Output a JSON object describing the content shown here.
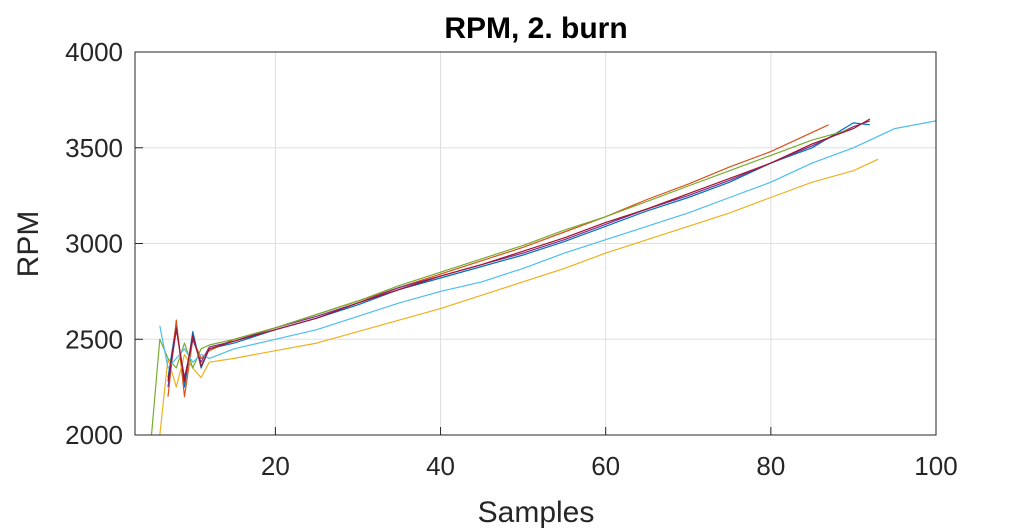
{
  "chart_data": {
    "type": "line",
    "title": "RPM, 2. burn",
    "xlabel": "Samples",
    "ylabel": "RPM",
    "xlim": [
      3,
      100
    ],
    "ylim": [
      2000,
      4000
    ],
    "xticks": [
      20,
      40,
      60,
      80,
      100
    ],
    "yticks": [
      2000,
      2500,
      3000,
      3500,
      4000
    ],
    "grid": true,
    "legend": "none",
    "series": [
      {
        "color": "#0072BD",
        "x": [
          7,
          8,
          9,
          10,
          11,
          12,
          15,
          20,
          25,
          30,
          35,
          40,
          45,
          50,
          55,
          60,
          65,
          70,
          75,
          80,
          85,
          90,
          92
        ],
        "y": [
          2300,
          2580,
          2250,
          2540,
          2350,
          2450,
          2480,
          2550,
          2610,
          2680,
          2760,
          2820,
          2880,
          2940,
          3010,
          3090,
          3170,
          3240,
          3320,
          3420,
          3500,
          3630,
          3620
        ]
      },
      {
        "color": "#D95319",
        "x": [
          7,
          8,
          9,
          10,
          11,
          12,
          15,
          20,
          25,
          30,
          35,
          40,
          45,
          50,
          55,
          60,
          65,
          70,
          75,
          80,
          85,
          87
        ],
        "y": [
          2200,
          2600,
          2200,
          2500,
          2400,
          2440,
          2500,
          2560,
          2630,
          2700,
          2770,
          2840,
          2910,
          2980,
          3060,
          3140,
          3230,
          3310,
          3400,
          3480,
          3580,
          3620
        ]
      },
      {
        "color": "#EDB120",
        "x": [
          6,
          7,
          8,
          9,
          10,
          11,
          12,
          15,
          20,
          25,
          30,
          35,
          40,
          45,
          50,
          55,
          60,
          65,
          70,
          75,
          80,
          85,
          90,
          93
        ],
        "y": [
          2000,
          2400,
          2250,
          2420,
          2350,
          2300,
          2380,
          2400,
          2440,
          2480,
          2540,
          2600,
          2660,
          2730,
          2800,
          2870,
          2950,
          3020,
          3090,
          3160,
          3240,
          3320,
          3380,
          3440
        ]
      },
      {
        "color": "#7E2F8E",
        "x": [
          7,
          8,
          9,
          10,
          11,
          12,
          15,
          20,
          25,
          30,
          35,
          40,
          45,
          50,
          55,
          60,
          65,
          70,
          75,
          80,
          85,
          90,
          92
        ],
        "y": [
          2250,
          2550,
          2300,
          2500,
          2380,
          2460,
          2490,
          2560,
          2620,
          2690,
          2770,
          2830,
          2890,
          2950,
          3020,
          3100,
          3180,
          3250,
          3330,
          3420,
          3510,
          3610,
          3640
        ]
      },
      {
        "color": "#77AC30",
        "x": [
          5,
          6,
          7,
          8,
          9,
          10,
          11,
          12,
          15,
          20,
          25,
          30,
          35,
          40,
          45,
          50,
          55,
          60,
          65,
          70,
          75,
          80,
          85,
          90
        ],
        "y": [
          2000,
          2500,
          2400,
          2350,
          2480,
          2350,
          2450,
          2470,
          2500,
          2560,
          2630,
          2700,
          2780,
          2850,
          2920,
          2990,
          3070,
          3140,
          3220,
          3300,
          3380,
          3460,
          3540,
          3600
        ]
      },
      {
        "color": "#4DBEEE",
        "x": [
          6,
          7,
          8,
          9,
          10,
          11,
          12,
          15,
          20,
          25,
          30,
          35,
          40,
          45,
          50,
          55,
          60,
          65,
          70,
          75,
          80,
          85,
          90,
          95,
          100
        ],
        "y": [
          2570,
          2350,
          2400,
          2450,
          2380,
          2420,
          2400,
          2450,
          2500,
          2550,
          2620,
          2690,
          2750,
          2800,
          2870,
          2950,
          3020,
          3090,
          3160,
          3240,
          3320,
          3420,
          3500,
          3600,
          3640
        ]
      },
      {
        "color": "#A2142F",
        "x": [
          7,
          8,
          9,
          10,
          11,
          12,
          15,
          20,
          25,
          30,
          35,
          40,
          45,
          50,
          55,
          60,
          65,
          70,
          75,
          80,
          85,
          90,
          92
        ],
        "y": [
          2280,
          2560,
          2280,
          2520,
          2360,
          2450,
          2490,
          2550,
          2610,
          2690,
          2760,
          2830,
          2890,
          2960,
          3030,
          3110,
          3180,
          3260,
          3340,
          3420,
          3520,
          3600,
          3650
        ]
      }
    ]
  }
}
